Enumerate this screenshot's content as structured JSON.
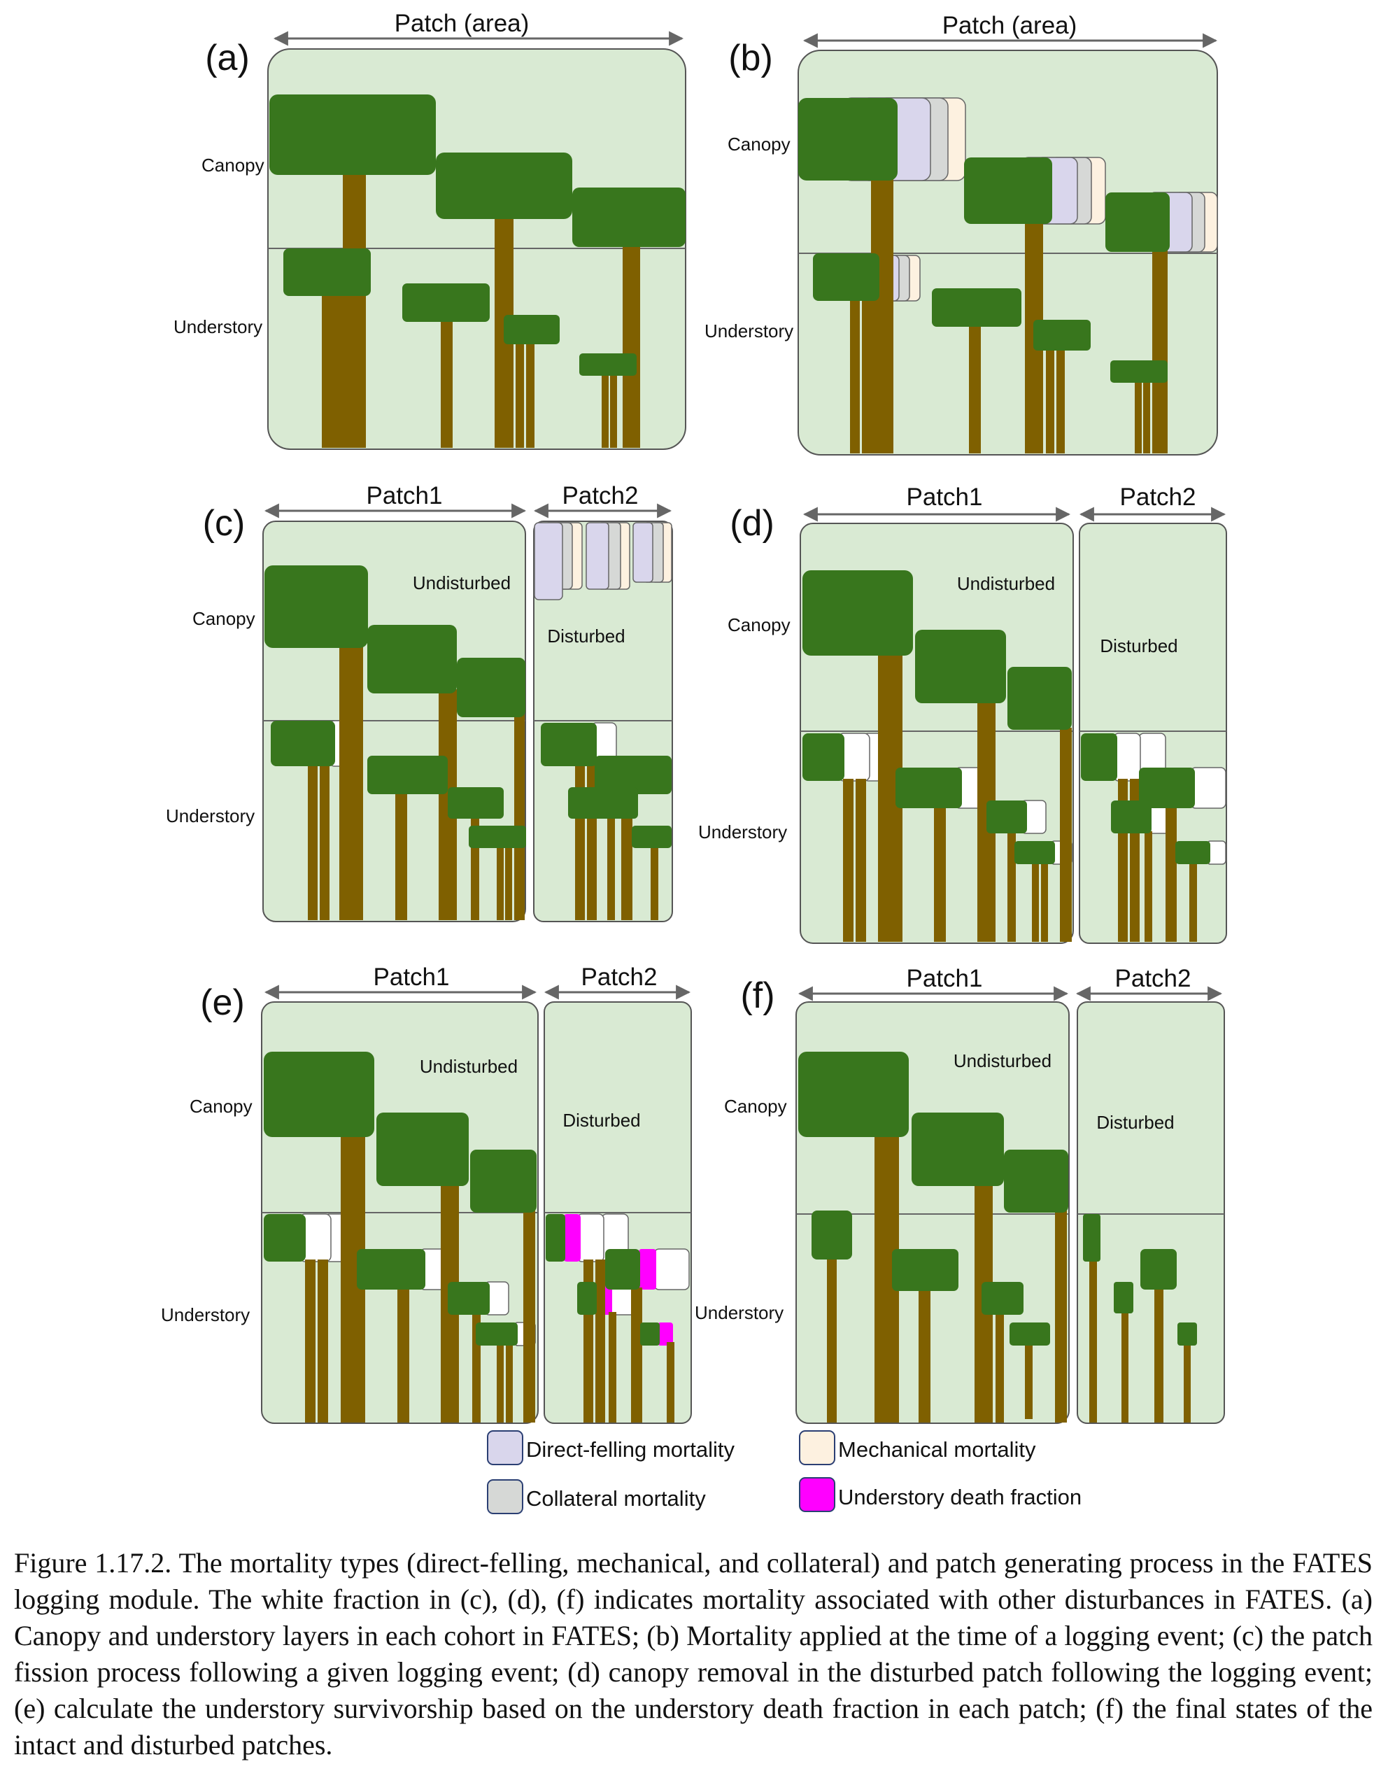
{
  "panels": [
    {
      "letter": "(a)",
      "patch_label": "Patch (area)",
      "canopy_label": "Canopy",
      "understory_label": "Understory"
    },
    {
      "letter": "(b)",
      "patch_label": "Patch (area)",
      "canopy_label": "Canopy",
      "understory_label": "Understory"
    },
    {
      "letter": "(c)",
      "patch1_label": "Patch1",
      "patch2_label": "Patch2",
      "canopy_label": "Canopy",
      "understory_label": "Understory",
      "undisturbed_label": "Undisturbed",
      "disturbed_label": "Disturbed"
    },
    {
      "letter": "(d)",
      "patch1_label": "Patch1",
      "patch2_label": "Patch2",
      "canopy_label": "Canopy",
      "understory_label": "Understory",
      "undisturbed_label": "Undisturbed",
      "disturbed_label": "Disturbed"
    },
    {
      "letter": "(e)",
      "patch1_label": "Patch1",
      "patch2_label": "Patch2",
      "canopy_label": "Canopy",
      "understory_label": "Understory",
      "undisturbed_label": "Undisturbed",
      "disturbed_label": "Disturbed"
    },
    {
      "letter": "(f)",
      "patch1_label": "Patch1",
      "patch2_label": "Patch2",
      "canopy_label": "Canopy",
      "understory_label": "Understory",
      "undisturbed_label": "Undisturbed",
      "disturbed_label": "Disturbed"
    }
  ],
  "legend": [
    {
      "label": "Direct-felling mortality",
      "color": "#d9d6ec"
    },
    {
      "label": "Collateral mortality",
      "color": "#d6d8d6"
    },
    {
      "label": "Mechanical mortality",
      "color": "#fdf1e0"
    },
    {
      "label": "Understory death fraction",
      "color": "#ff00ff"
    }
  ],
  "colors": {
    "patch_bg": "#d9ead3",
    "crown": "#38761d",
    "trunk": "#7f6000",
    "other_disturbance": "#ffffff"
  },
  "caption": "Figure 1.17.2. The mortality types (direct-felling, mechanical, and collateral) and patch generating process in the FATES logging module. The white fraction in (c), (d), (f) indicates mortality associated with other disturbances in FATES. (a) Canopy and understory layers in each cohort in FATES; (b) Mortality applied at the time of a logging event; (c) the patch fission process following a given logging event; (d) canopy removal in the disturbed patch following the logging event; (e) calculate the understory survivorship based on the understory death fraction in each patch; (f) the final states of the intact and disturbed patches."
}
